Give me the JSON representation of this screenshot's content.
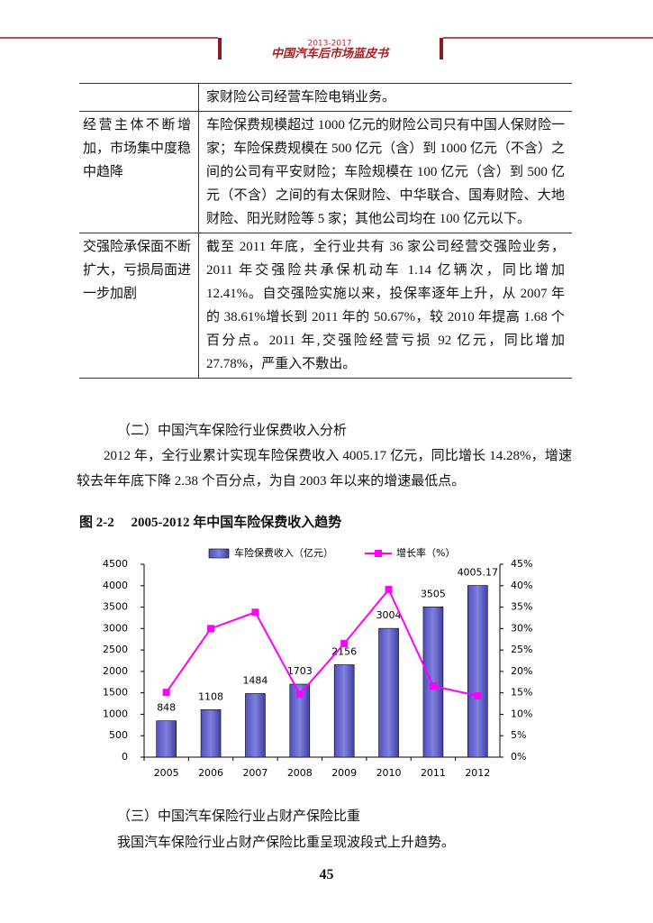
{
  "header": {
    "years": "2013-2017",
    "title": "中国汽车后市场蓝皮书"
  },
  "table": {
    "rows": [
      {
        "content": "家财险公司经营车险电销业务。"
      },
      {
        "topic": "经营主体不断增加，市场集中度稳中趋降",
        "content": "车险保费规模超过 1000 亿元的财险公司只有中国人保财险一家；车险保费规模在 500 亿元（含）到 1000 亿元（不含）之间的公司有平安财险；车险规模在 100 亿元（含）到 500 亿元（不含）之间的有太保财险、中华联合、国寿财险、大地财险、阳光财险等 5 家；其他公司均在 100 亿元以下。"
      },
      {
        "topic": "交强险承保面不断扩大，亏损局面进一步加剧",
        "content": "截至 2011 年底，全行业共有 36 家公司经营交强险业务，2011 年交强险共承保机动车 1.14 亿辆次，同比增加 12.41%。自交强险实施以来，投保率逐年上升，从 2007 年的 38.61%增长到 2011 年的 50.67%，较 2010 年提高 1.68 个百分点。2011 年,交强险经营亏损 92 亿元，同比增加 27.78%，严重入不敷出。"
      }
    ]
  },
  "paragraphs": [
    "（二）中国汽车保险行业保费收入分析",
    "2012 年，全行业累计实现车险保费收入 4005.17 亿元，同比增长 14.28%，增速较去年年底下降 2.38 个百分点，为自 2003 年以来的增速最低点。"
  ],
  "chart_data": {
    "type": "bar",
    "title": "图 2-2　 2005-2012 年中国车险保费收入趋势",
    "categories": [
      "2005",
      "2006",
      "2007",
      "2008",
      "2009",
      "2010",
      "2011",
      "2012"
    ],
    "series": [
      {
        "name": "车险保费收入（亿元）",
        "color": "#8080e0",
        "values": [
          848,
          1108,
          1484,
          1703,
          2156,
          3004,
          3505,
          4005.17
        ]
      },
      {
        "name": "增长率（%）",
        "type": "line",
        "axis": "y2",
        "color": "#ff00ff",
        "values": [
          15.1,
          30.0,
          33.8,
          14.7,
          26.5,
          39.1,
          16.6,
          14.3
        ]
      }
    ],
    "ylim": [
      0,
      4500
    ],
    "yticks": [
      0,
      500,
      1000,
      1500,
      2000,
      2500,
      3000,
      3500,
      4000,
      4500
    ],
    "y2lim": [
      0,
      45
    ],
    "y2ticks": [
      {
        "value": 0,
        "label": "0%"
      },
      {
        "value": 5,
        "label": "5%"
      },
      {
        "value": 10,
        "label": "10%"
      },
      {
        "value": 15,
        "label": "15%"
      },
      {
        "value": 20,
        "label": "20%"
      },
      {
        "value": 25,
        "label": "25%"
      },
      {
        "value": 30,
        "label": "30%"
      },
      {
        "value": 35,
        "label": "35%"
      },
      {
        "value": 40,
        "label": "40%"
      },
      {
        "value": 45,
        "label": "45%"
      }
    ],
    "grid": false,
    "legend": "top"
  },
  "closing": [
    "（三）中国汽车保险行业占财产保险比重",
    "我国汽车保险行业占财产保险比重呈现波段式上升趋势。"
  ],
  "page_number": "45"
}
